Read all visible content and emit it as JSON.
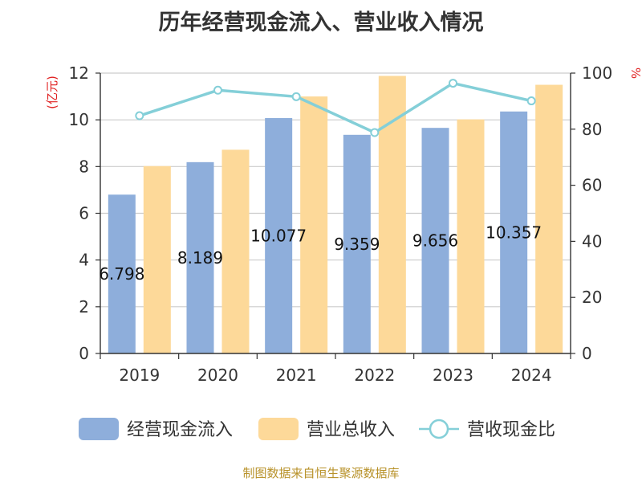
{
  "title": "历年经营现金流入、营业收入情况",
  "source": "制图数据来自恒生聚源数据库",
  "chart_data": {
    "type": "bar",
    "categories": [
      "2019",
      "2020",
      "2021",
      "2022",
      "2023",
      "2024"
    ],
    "series": [
      {
        "name": "经营现金流入",
        "type": "bar",
        "axis": "left",
        "color": "#8eaedb",
        "values": [
          6.798,
          8.189,
          10.077,
          9.359,
          9.656,
          10.357
        ],
        "labels": [
          "6.798",
          "8.189",
          "10.077",
          "9.359",
          "9.656",
          "10.357"
        ]
      },
      {
        "name": "营业总收入",
        "type": "bar",
        "axis": "left",
        "color": "#fdd999",
        "values": [
          8.02,
          8.72,
          11.0,
          11.88,
          10.02,
          11.5
        ]
      },
      {
        "name": "营收现金比",
        "type": "line",
        "axis": "right",
        "color": "#84cfd8",
        "values": [
          84.8,
          93.9,
          91.6,
          78.8,
          96.4,
          90.1
        ]
      }
    ],
    "yleft": {
      "label": "(亿元)",
      "ticks": [
        "0",
        "2",
        "4",
        "6",
        "8",
        "10",
        "12"
      ],
      "ylim": [
        0,
        12
      ]
    },
    "yright": {
      "label": "%",
      "ticks": [
        "0",
        "20",
        "40",
        "60",
        "80",
        "100"
      ],
      "ylim": [
        0,
        100
      ]
    },
    "grid": true,
    "legend_position": "bottom"
  }
}
